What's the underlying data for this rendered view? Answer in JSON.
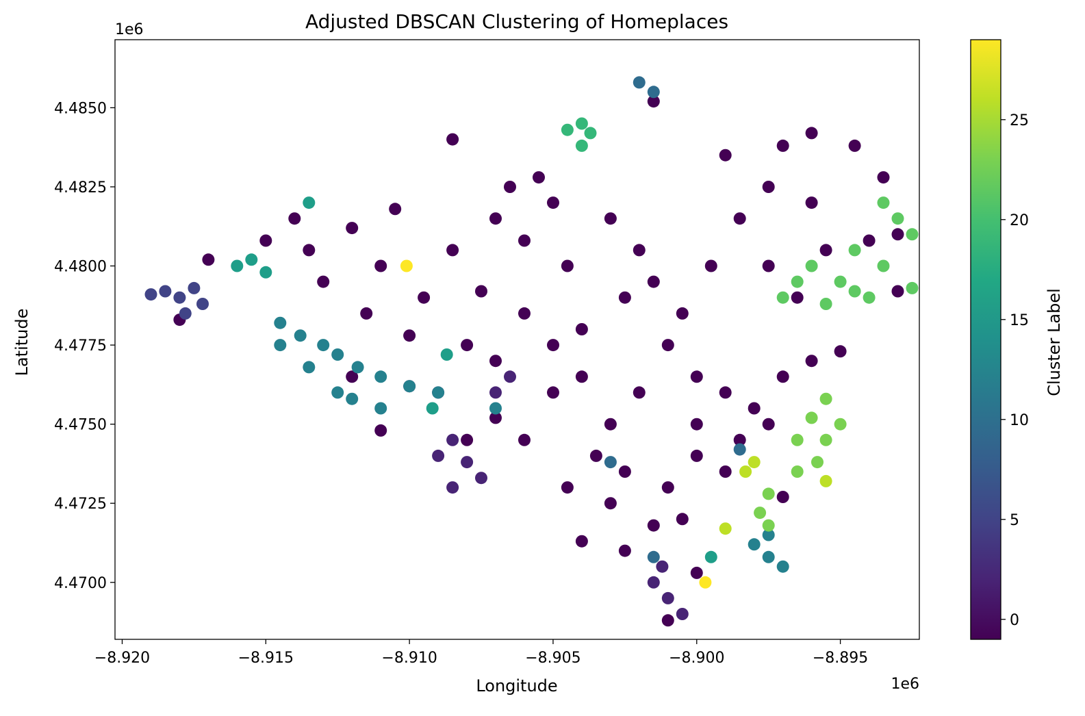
{
  "chart_data": {
    "type": "scatter",
    "title": "Adjusted DBSCAN Clustering of Homeplaces",
    "xlabel": "Longitude",
    "ylabel": "Latitude",
    "x_offset_label": "1e6",
    "y_offset_label": "1e6",
    "xlim": [
      -8.92025,
      -8.89225
    ],
    "ylim": [
      4.4682,
      4.48715
    ],
    "x_ticks": [
      -8.92,
      -8.915,
      -8.91,
      -8.905,
      -8.9,
      -8.895
    ],
    "x_tick_labels": [
      "−8.920",
      "−8.915",
      "−8.910",
      "−8.905",
      "−8.900",
      "−8.895"
    ],
    "y_ticks": [
      4.47,
      4.4725,
      4.475,
      4.4775,
      4.48,
      4.4825,
      4.485
    ],
    "y_tick_labels": [
      "4.4700",
      "4.4725",
      "4.4750",
      "4.4775",
      "4.4800",
      "4.4825",
      "4.4850"
    ],
    "grid": false,
    "colorbar": {
      "label": "Cluster Label",
      "colormap": "viridis",
      "range": [
        -1,
        29
      ],
      "ticks": [
        0,
        5,
        10,
        15,
        20,
        25
      ],
      "tick_labels": [
        "0",
        "5",
        "10",
        "15",
        "20",
        "25"
      ]
    },
    "clusters": [
      {
        "label": 0,
        "color": "#440154",
        "points": [
          [
            -8.9135,
            4.4805
          ],
          [
            -8.912,
            4.4812
          ],
          [
            -8.9105,
            4.4818
          ],
          [
            -8.911,
            4.48
          ],
          [
            -8.9095,
            4.479
          ],
          [
            -8.9085,
            4.4805
          ],
          [
            -8.907,
            4.4815
          ],
          [
            -8.906,
            4.4808
          ],
          [
            -8.905,
            4.482
          ],
          [
            -8.9045,
            4.48
          ],
          [
            -8.903,
            4.4815
          ],
          [
            -8.902,
            4.4805
          ],
          [
            -8.9075,
            4.4792
          ],
          [
            -8.906,
            4.4785
          ],
          [
            -8.904,
            4.478
          ],
          [
            -8.9025,
            4.479
          ],
          [
            -8.9015,
            4.4795
          ],
          [
            -8.9005,
            4.4785
          ],
          [
            -8.8995,
            4.48
          ],
          [
            -8.8985,
            4.4815
          ],
          [
            -8.8975,
            4.4825
          ],
          [
            -8.899,
            4.4835
          ],
          [
            -8.897,
            4.4838
          ],
          [
            -8.896,
            4.482
          ],
          [
            -8.8955,
            4.4805
          ],
          [
            -8.8965,
            4.479
          ],
          [
            -8.8975,
            4.48
          ],
          [
            -8.901,
            4.4775
          ],
          [
            -8.9,
            4.4765
          ],
          [
            -8.899,
            4.476
          ],
          [
            -8.898,
            4.4755
          ],
          [
            -8.897,
            4.4765
          ],
          [
            -8.896,
            4.477
          ],
          [
            -8.902,
            4.476
          ],
          [
            -8.903,
            4.475
          ],
          [
            -8.904,
            4.4765
          ],
          [
            -8.905,
            4.476
          ],
          [
            -8.9035,
            4.474
          ],
          [
            -8.9025,
            4.4735
          ],
          [
            -8.901,
            4.473
          ],
          [
            -8.9,
            4.474
          ],
          [
            -8.899,
            4.4735
          ],
          [
            -8.9015,
            4.4718
          ],
          [
            -8.903,
            4.4725
          ],
          [
            -8.9045,
            4.473
          ],
          [
            -8.906,
            4.4745
          ],
          [
            -8.907,
            4.4752
          ],
          [
            -8.908,
            4.4745
          ],
          [
            -8.909,
            4.476
          ],
          [
            -8.905,
            4.4775
          ],
          [
            -8.907,
            4.477
          ],
          [
            -8.91,
            4.4778
          ],
          [
            -8.9115,
            4.4785
          ],
          [
            -8.913,
            4.4795
          ],
          [
            -8.9025,
            4.471
          ],
          [
            -8.9005,
            4.472
          ],
          [
            -8.8985,
            4.4745
          ],
          [
            -8.8975,
            4.475
          ],
          [
            -8.9,
            4.475
          ],
          [
            -8.9055,
            4.4828
          ],
          [
            -8.9065,
            4.4825
          ],
          [
            -8.896,
            4.4842
          ],
          [
            -8.8945,
            4.4838
          ],
          [
            -8.8935,
            4.4828
          ],
          [
            -8.914,
            4.4815
          ],
          [
            -8.915,
            4.4808
          ],
          [
            -8.917,
            4.4802
          ],
          [
            -8.912,
            4.4765
          ],
          [
            -8.91,
            4.4762
          ],
          [
            -8.908,
            4.4775
          ],
          [
            -8.9,
            4.4703
          ],
          [
            -8.901,
            4.4688
          ],
          [
            -8.904,
            4.4713
          ],
          [
            -8.893,
            4.4792
          ],
          [
            -8.894,
            4.4808
          ],
          [
            -8.893,
            4.481
          ],
          [
            -8.895,
            4.4773
          ],
          [
            -8.918,
            4.4783
          ],
          [
            -8.911,
            4.4748
          ],
          [
            -8.897,
            4.4727
          ],
          [
            -8.9085,
            4.484
          ],
          [
            -8.9015,
            4.4852
          ]
        ]
      },
      {
        "label": 2,
        "color": "#482475",
        "points": [
          [
            -8.9085,
            4.4745
          ],
          [
            -8.908,
            4.4738
          ],
          [
            -8.909,
            4.474
          ],
          [
            -8.9075,
            4.4733
          ],
          [
            -8.9085,
            4.473
          ],
          [
            -8.907,
            4.476
          ],
          [
            -8.9065,
            4.4765
          ],
          [
            -8.9015,
            4.47
          ],
          [
            -8.901,
            4.4695
          ],
          [
            -8.9005,
            4.469
          ],
          [
            -8.9012,
            4.4705
          ]
        ]
      },
      {
        "label": 4,
        "color": "#414487",
        "points": [
          [
            -8.9185,
            4.4792
          ],
          [
            -8.918,
            4.479
          ],
          [
            -8.9175,
            4.4793
          ],
          [
            -8.9172,
            4.4788
          ],
          [
            -8.9178,
            4.4785
          ],
          [
            -8.919,
            4.4791
          ]
        ]
      },
      {
        "label": 8,
        "color": "#2f6c8e",
        "points": [
          [
            -8.902,
            4.4858
          ],
          [
            -8.9015,
            4.4855
          ],
          [
            -8.903,
            4.4738
          ],
          [
            -8.9015,
            4.4708
          ],
          [
            -8.8985,
            4.4742
          ]
        ]
      },
      {
        "label": 11,
        "color": "#25818e",
        "points": [
          [
            -8.9145,
            4.4782
          ],
          [
            -8.9138,
            4.4778
          ],
          [
            -8.913,
            4.4775
          ],
          [
            -8.9125,
            4.4772
          ],
          [
            -8.9118,
            4.4768
          ],
          [
            -8.911,
            4.4765
          ],
          [
            -8.91,
            4.4762
          ],
          [
            -8.909,
            4.476
          ],
          [
            -8.912,
            4.4758
          ],
          [
            -8.911,
            4.4755
          ],
          [
            -8.9145,
            4.4775
          ],
          [
            -8.9135,
            4.4768
          ],
          [
            -8.9125,
            4.476
          ],
          [
            -8.898,
            4.4712
          ],
          [
            -8.8975,
            4.4708
          ],
          [
            -8.897,
            4.4705
          ],
          [
            -8.8975,
            4.4715
          ],
          [
            -8.907,
            4.4755
          ]
        ]
      },
      {
        "label": 16,
        "color": "#1f9e89",
        "points": [
          [
            -8.916,
            4.48
          ],
          [
            -8.9155,
            4.4802
          ],
          [
            -8.915,
            4.4798
          ],
          [
            -8.9135,
            4.482
          ],
          [
            -8.9087,
            4.4772
          ],
          [
            -8.9092,
            4.4755
          ],
          [
            -8.8995,
            4.4708
          ]
        ]
      },
      {
        "label": 20,
        "color": "#35b779",
        "points": [
          [
            -8.904,
            4.4845
          ],
          [
            -8.9037,
            4.4842
          ],
          [
            -8.9045,
            4.4843
          ],
          [
            -8.904,
            4.4838
          ]
        ]
      },
      {
        "label": 22,
        "color": "#5ec962",
        "points": [
          [
            -8.8965,
            4.4795
          ],
          [
            -8.896,
            4.48
          ],
          [
            -8.895,
            4.4795
          ],
          [
            -8.8945,
            4.4805
          ],
          [
            -8.8935,
            4.48
          ],
          [
            -8.894,
            4.479
          ],
          [
            -8.8955,
            4.4788
          ],
          [
            -8.893,
            4.4815
          ],
          [
            -8.8935,
            4.482
          ],
          [
            -8.8925,
            4.481
          ],
          [
            -8.897,
            4.479
          ],
          [
            -8.8945,
            4.4792
          ],
          [
            -8.8925,
            4.4793
          ]
        ]
      },
      {
        "label": 24,
        "color": "#7ad151",
        "points": [
          [
            -8.896,
            4.4752
          ],
          [
            -8.8955,
            4.4745
          ],
          [
            -8.8965,
            4.4745
          ],
          [
            -8.8958,
            4.4738
          ],
          [
            -8.8965,
            4.4735
          ],
          [
            -8.8975,
            4.4728
          ],
          [
            -8.8978,
            4.4722
          ],
          [
            -8.8975,
            4.4718
          ],
          [
            -8.8955,
            4.4758
          ],
          [
            -8.895,
            4.475
          ]
        ]
      },
      {
        "label": 26,
        "color": "#bddf26",
        "points": [
          [
            -8.8983,
            4.4735
          ],
          [
            -8.898,
            4.4738
          ],
          [
            -8.8955,
            4.4732
          ],
          [
            -8.899,
            4.4717
          ]
        ]
      },
      {
        "label": 29,
        "color": "#fde725",
        "points": [
          [
            -8.9101,
            4.48
          ],
          [
            -8.8997,
            4.47
          ]
        ]
      }
    ]
  }
}
